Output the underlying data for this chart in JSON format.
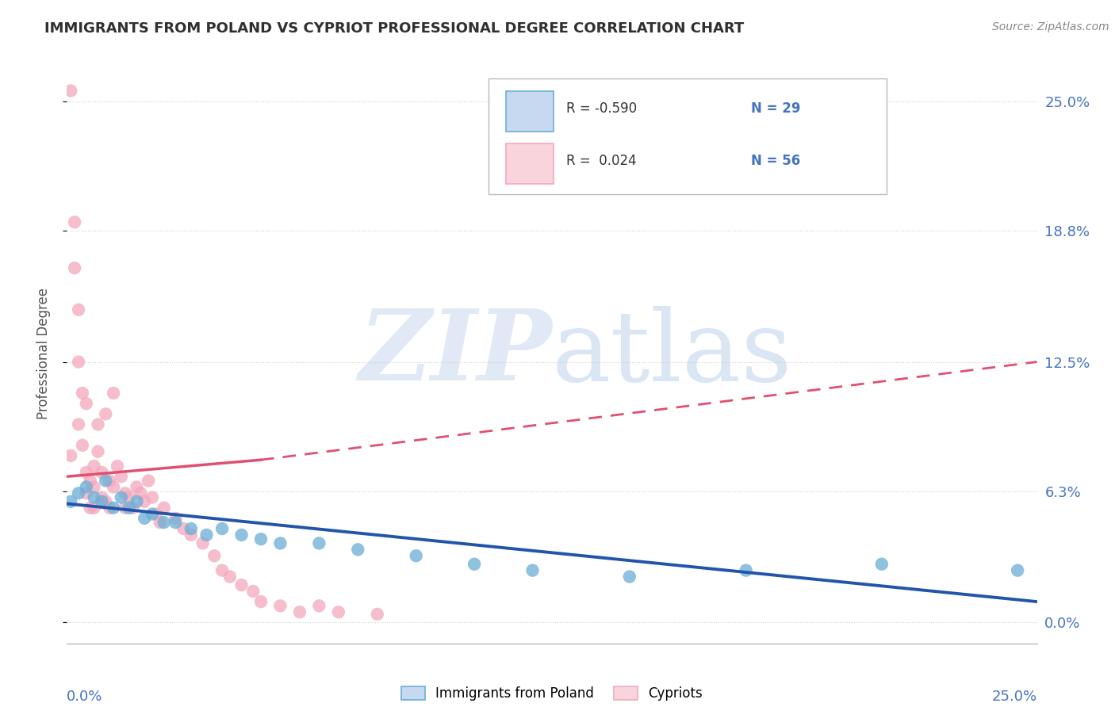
{
  "title": "IMMIGRANTS FROM POLAND VS CYPRIOT PROFESSIONAL DEGREE CORRELATION CHART",
  "source": "Source: ZipAtlas.com",
  "ylabel": "Professional Degree",
  "ytick_labels": [
    "25.0%",
    "18.8%",
    "12.5%",
    "6.3%",
    "0.0%"
  ],
  "ytick_values": [
    0.25,
    0.188,
    0.125,
    0.063,
    0.0
  ],
  "xlim": [
    0.0,
    0.25
  ],
  "ylim": [
    -0.01,
    0.268
  ],
  "blue_color": "#6aaed6",
  "pink_color": "#f4a8bc",
  "blue_fill": "#c6d9f0",
  "pink_fill": "#fad4dc",
  "trend_blue_color": "#2255aa",
  "trend_pink_color": "#e05070",
  "blue_scatter_x": [
    0.001,
    0.003,
    0.005,
    0.007,
    0.009,
    0.01,
    0.012,
    0.014,
    0.016,
    0.018,
    0.02,
    0.022,
    0.025,
    0.028,
    0.032,
    0.036,
    0.04,
    0.045,
    0.05,
    0.055,
    0.065,
    0.075,
    0.09,
    0.105,
    0.12,
    0.145,
    0.175,
    0.21,
    0.245
  ],
  "blue_scatter_y": [
    0.058,
    0.062,
    0.065,
    0.06,
    0.058,
    0.068,
    0.055,
    0.06,
    0.055,
    0.058,
    0.05,
    0.052,
    0.048,
    0.048,
    0.045,
    0.042,
    0.045,
    0.042,
    0.04,
    0.038,
    0.038,
    0.035,
    0.032,
    0.028,
    0.025,
    0.022,
    0.025,
    0.028,
    0.025
  ],
  "pink_scatter_x": [
    0.001,
    0.001,
    0.002,
    0.002,
    0.003,
    0.003,
    0.003,
    0.004,
    0.004,
    0.005,
    0.005,
    0.005,
    0.006,
    0.006,
    0.007,
    0.007,
    0.007,
    0.008,
    0.008,
    0.009,
    0.009,
    0.01,
    0.01,
    0.011,
    0.011,
    0.012,
    0.012,
    0.013,
    0.014,
    0.015,
    0.015,
    0.016,
    0.017,
    0.018,
    0.019,
    0.02,
    0.021,
    0.022,
    0.023,
    0.024,
    0.025,
    0.028,
    0.03,
    0.032,
    0.035,
    0.038,
    0.04,
    0.042,
    0.045,
    0.048,
    0.05,
    0.055,
    0.06,
    0.065,
    0.07,
    0.08
  ],
  "pink_scatter_y": [
    0.255,
    0.08,
    0.192,
    0.17,
    0.15,
    0.125,
    0.095,
    0.11,
    0.085,
    0.105,
    0.072,
    0.062,
    0.068,
    0.055,
    0.075,
    0.065,
    0.055,
    0.095,
    0.082,
    0.072,
    0.06,
    0.1,
    0.058,
    0.068,
    0.055,
    0.11,
    0.065,
    0.075,
    0.07,
    0.062,
    0.055,
    0.06,
    0.055,
    0.065,
    0.062,
    0.058,
    0.068,
    0.06,
    0.052,
    0.048,
    0.055,
    0.05,
    0.045,
    0.042,
    0.038,
    0.032,
    0.025,
    0.022,
    0.018,
    0.015,
    0.01,
    0.008,
    0.005,
    0.008,
    0.005,
    0.004
  ],
  "pink_trend_x_start": 0.0,
  "pink_trend_x_solid_end": 0.05,
  "pink_trend_x_end": 0.25,
  "pink_trend_y_start": 0.07,
  "pink_trend_y_solid_end": 0.078,
  "pink_trend_y_end": 0.125,
  "blue_trend_x_start": 0.0,
  "blue_trend_x_end": 0.25,
  "blue_trend_y_start": 0.057,
  "blue_trend_y_end": 0.01,
  "watermark_zip": "ZIP",
  "watermark_atlas": "atlas",
  "bg_color": "#FFFFFF",
  "grid_color": "#D0D0D0"
}
